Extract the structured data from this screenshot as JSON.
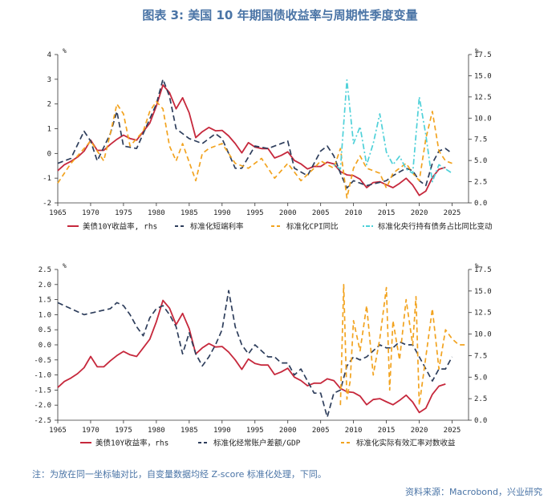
{
  "title": "图表 3:  美国 10 年期国债收益率与周期性季度变量",
  "footnote": "注：为放在同一坐标轴对比，自变量数据均经 Z-score 标准化处理，下同。",
  "source": "资料来源：Macrobond，兴业研究",
  "colors": {
    "red": "#c6283c",
    "blue": "#2e3e5c",
    "orange": "#f2a31f",
    "cyan": "#4fd1d9"
  },
  "chart_data": [
    {
      "type": "line",
      "x_ticks": [
        "1965",
        "1970",
        "1975",
        "1980",
        "1985",
        "1990",
        "1995",
        "2000",
        "2005",
        "2010",
        "2015",
        "2020",
        "2025"
      ],
      "xlim": [
        1965,
        2027.5
      ],
      "left_axis": {
        "unit": "%",
        "lim": [
          -2,
          4
        ],
        "ticks": [
          "4",
          "3",
          "2",
          "1",
          "0",
          "-1",
          "-2"
        ]
      },
      "right_axis": {
        "unit": "%",
        "lim": [
          0,
          17.5
        ],
        "ticks": [
          "17.5",
          "15.0",
          "12.5",
          "10.0",
          "7.5",
          "5.0",
          "2.5",
          "0.0"
        ]
      },
      "series": [
        {
          "name": "美债10Y收益率, rhs",
          "axis": "right",
          "color": "red",
          "dash": "solid",
          "x": [
            1965,
            1966,
            1967,
            1968,
            1969,
            1970,
            1971,
            1972,
            1973,
            1974,
            1975,
            1976,
            1977,
            1978,
            1979,
            1980,
            1981,
            1982,
            1983,
            1984,
            1985,
            1986,
            1987,
            1988,
            1989,
            1990,
            1991,
            1992,
            1993,
            1994,
            1995,
            1996,
            1997,
            1998,
            1999,
            2000,
            2001,
            2002,
            2003,
            2004,
            2005,
            2006,
            2007,
            2008,
            2009,
            2010,
            2011,
            2012,
            2013,
            2014,
            2015,
            2016,
            2017,
            2018,
            2019,
            2020,
            2021,
            2022,
            2023,
            2024
          ],
          "y": [
            3.8,
            4.5,
            4.9,
            5.4,
            6.1,
            7.4,
            6.2,
            6.2,
            6.9,
            7.5,
            7.99,
            7.6,
            7.4,
            8.4,
            9.4,
            11.43,
            13.91,
            13.0,
            11.1,
            12.4,
            10.62,
            7.7,
            8.4,
            8.9,
            8.5,
            8.55,
            7.9,
            7.0,
            5.9,
            7.1,
            6.58,
            6.4,
            6.4,
            5.3,
            5.6,
            6.03,
            5.0,
            4.6,
            4.0,
            4.3,
            4.29,
            4.8,
            4.6,
            3.7,
            3.3,
            3.22,
            2.8,
            1.8,
            2.4,
            2.5,
            2.14,
            1.8,
            2.3,
            2.9,
            2.1,
            0.89,
            1.4,
            3.0,
            3.96,
            4.2
          ]
        },
        {
          "name": "标准化短端利率",
          "axis": "left",
          "color": "blue",
          "dash": "7,4",
          "x": [
            1965,
            1967,
            1969,
            1970,
            1971,
            1973,
            1974,
            1975,
            1977,
            1979,
            1980,
            1981,
            1982,
            1983,
            1985,
            1987,
            1989,
            1990,
            1992,
            1993,
            1995,
            1997,
            1998,
            2000,
            2001,
            2003,
            2005,
            2006,
            2007,
            2008,
            2009,
            2010,
            2012,
            2015,
            2016,
            2018,
            2019,
            2020,
            2021,
            2022,
            2023,
            2024,
            2025
          ],
          "y": [
            -0.4,
            -0.2,
            0.9,
            0.5,
            -0.3,
            0.8,
            1.7,
            0.3,
            0.2,
            1.4,
            2.0,
            3.0,
            2.3,
            1.0,
            0.6,
            0.4,
            0.8,
            0.6,
            -0.6,
            -0.6,
            0.3,
            0.2,
            0.3,
            0.5,
            -0.6,
            -0.9,
            0.1,
            0.3,
            -0.1,
            -0.8,
            -1.4,
            -1.1,
            -1.3,
            -1.1,
            -0.9,
            -0.6,
            -0.7,
            -1.1,
            -1.3,
            -0.4,
            0.1,
            0.2,
            0.0
          ]
        },
        {
          "name": "标准化CPI同比",
          "axis": "left",
          "color": "orange",
          "dash": "6,4",
          "x": [
            1965,
            1967,
            1970,
            1972,
            1973,
            1974,
            1975,
            1976,
            1978,
            1979,
            1980,
            1981,
            1982,
            1983,
            1984,
            1986,
            1987,
            1988,
            1990,
            1992,
            1994,
            1996,
            1998,
            2000,
            2002,
            2004,
            2005,
            2007,
            2008,
            2009,
            2010,
            2011,
            2012,
            2014,
            2015,
            2016,
            2017,
            2018,
            2019,
            2020,
            2021,
            2022,
            2023,
            2024,
            2025
          ],
          "y": [
            -1.2,
            -0.4,
            0.5,
            -0.3,
            0.8,
            2.0,
            1.6,
            0.3,
            0.9,
            1.7,
            2.1,
            1.8,
            0.3,
            -0.3,
            0.4,
            -1.1,
            0.0,
            0.2,
            0.4,
            -0.4,
            -0.6,
            -0.2,
            -1.0,
            -0.4,
            -1.1,
            -0.6,
            -0.3,
            -0.6,
            0.2,
            -1.8,
            -0.6,
            -0.1,
            -0.6,
            -0.8,
            -1.4,
            -0.8,
            -0.6,
            -0.4,
            -0.8,
            -1.1,
            0.6,
            1.7,
            0.1,
            -0.3,
            -0.4
          ]
        },
        {
          "name": "标准化央行持有债务占比同比变动",
          "axis": "right",
          "color": "cyan",
          "dash": "2,3,7,3",
          "x": [
            2007,
            2008,
            2009,
            2010,
            2011,
            2012,
            2013,
            2014,
            2015,
            2016,
            2017,
            2018,
            2019,
            2020,
            2021,
            2022,
            2023,
            2024,
            2025
          ],
          "y": [
            4.5,
            4.0,
            14.5,
            7.0,
            9.0,
            4.5,
            7.0,
            10.5,
            6.0,
            4.5,
            5.5,
            4.0,
            3.5,
            12.5,
            8.0,
            2.5,
            4.5,
            4.0,
            3.5
          ]
        }
      ]
    },
    {
      "type": "line",
      "x_ticks": [
        "1965",
        "1970",
        "1975",
        "1980",
        "1985",
        "1990",
        "1995",
        "2000",
        "2005",
        "2010",
        "2015",
        "2020",
        "2025"
      ],
      "xlim": [
        1965,
        2027.5
      ],
      "left_axis": {
        "unit": "%",
        "lim": [
          -2.5,
          2.5
        ],
        "ticks": [
          "2.5",
          "2.0",
          "1.5",
          "1.0",
          "0.5",
          "0.0",
          "-0.5",
          "-1.0",
          "-1.5",
          "-2.0",
          "-2.5"
        ]
      },
      "right_axis": {
        "unit": "%",
        "lim": [
          0,
          17.5
        ],
        "ticks": [
          "17.5",
          "15.0",
          "12.5",
          "10.0",
          "7.5",
          "5.0",
          "2.5",
          "0.0"
        ]
      },
      "series": [
        {
          "name": "美债10Y收益率，rhs",
          "axis": "right",
          "color": "red",
          "dash": "solid",
          "x": [
            1965,
            1966,
            1967,
            1968,
            1969,
            1970,
            1971,
            1972,
            1973,
            1974,
            1975,
            1976,
            1977,
            1978,
            1979,
            1980,
            1981,
            1982,
            1983,
            1984,
            1985,
            1986,
            1987,
            1988,
            1989,
            1990,
            1991,
            1992,
            1993,
            1994,
            1995,
            1996,
            1997,
            1998,
            1999,
            2000,
            2001,
            2002,
            2003,
            2004,
            2005,
            2006,
            2007,
            2008,
            2009,
            2010,
            2011,
            2012,
            2013,
            2014,
            2015,
            2016,
            2017,
            2018,
            2019,
            2020,
            2021,
            2022,
            2023,
            2024
          ],
          "y": [
            3.8,
            4.5,
            4.9,
            5.4,
            6.1,
            7.4,
            6.2,
            6.2,
            6.9,
            7.5,
            7.99,
            7.6,
            7.4,
            8.4,
            9.4,
            11.43,
            13.91,
            13.0,
            11.1,
            12.4,
            10.62,
            7.7,
            8.4,
            8.9,
            8.5,
            8.55,
            7.9,
            7.0,
            5.9,
            7.1,
            6.58,
            6.4,
            6.4,
            5.3,
            5.6,
            6.03,
            5.0,
            4.6,
            4.0,
            4.3,
            4.29,
            4.8,
            4.6,
            3.7,
            3.3,
            3.22,
            2.8,
            1.8,
            2.4,
            2.5,
            2.14,
            1.8,
            2.3,
            2.9,
            2.1,
            0.89,
            1.4,
            3.0,
            3.96,
            4.2
          ]
        },
        {
          "name": "标准化经常账户差额/GDP",
          "axis": "left",
          "color": "blue",
          "dash": "7,4",
          "x": [
            1965,
            1967,
            1969,
            1971,
            1973,
            1974,
            1975,
            1976,
            1977,
            1978,
            1979,
            1980,
            1981,
            1982,
            1983,
            1984,
            1985,
            1986,
            1987,
            1988,
            1989,
            1990,
            1991,
            1992,
            1993,
            1994,
            1995,
            1996,
            1997,
            1998,
            1999,
            2000,
            2001,
            2002,
            2003,
            2004,
            2005,
            2006,
            2007,
            2008,
            2009,
            2010,
            2011,
            2012,
            2013,
            2014,
            2015,
            2016,
            2017,
            2018,
            2019,
            2020,
            2021,
            2022,
            2023,
            2024,
            2025
          ],
          "y": [
            1.4,
            1.2,
            1.0,
            1.1,
            1.2,
            1.4,
            1.3,
            1.0,
            0.6,
            0.3,
            0.9,
            1.2,
            1.3,
            1.0,
            0.6,
            -0.3,
            0.4,
            -0.3,
            -0.7,
            -0.4,
            0.0,
            0.5,
            1.8,
            0.6,
            0.0,
            -0.3,
            0.0,
            -0.2,
            -0.4,
            -0.4,
            -0.6,
            -0.6,
            -1.0,
            -0.8,
            -1.2,
            -1.6,
            -1.6,
            -2.4,
            -1.6,
            -1.5,
            -0.7,
            -0.4,
            -0.5,
            -0.4,
            -0.2,
            0.0,
            -0.1,
            -0.1,
            0.1,
            0.0,
            0.0,
            -0.4,
            -0.8,
            -1.2,
            -0.8,
            -0.8,
            -0.4
          ]
        },
        {
          "name": "标准化实际有效汇率对数收益",
          "axis": "left",
          "color": "orange",
          "dash": "6,4",
          "x": [
            2008,
            2008.5,
            2009,
            2009.5,
            2010,
            2011,
            2012,
            2013,
            2014,
            2015,
            2015.5,
            2016,
            2017,
            2018,
            2019,
            2019.5,
            2020,
            2021,
            2022,
            2023,
            2024,
            2025,
            2026,
            2027
          ],
          "y": [
            -2.0,
            2.0,
            -1.8,
            -1.2,
            0.8,
            -0.2,
            1.3,
            -1.0,
            0.2,
            1.9,
            -1.5,
            0.8,
            -0.5,
            1.5,
            0.0,
            1.6,
            -2.0,
            -0.4,
            1.2,
            -0.8,
            0.5,
            0.2,
            0.0,
            0.0
          ]
        }
      ]
    }
  ]
}
